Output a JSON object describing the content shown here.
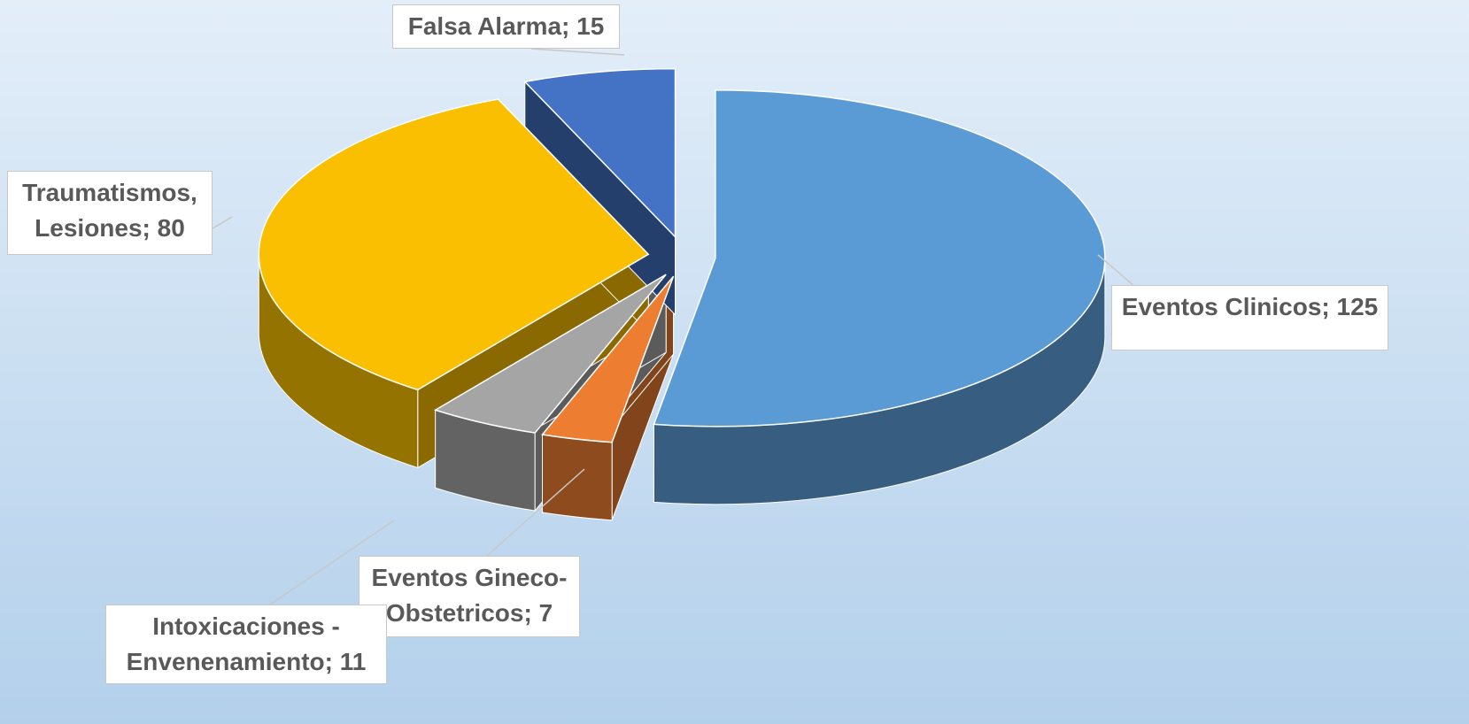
{
  "chart_data": {
    "type": "pie3d",
    "values": [
      125,
      7,
      11,
      80,
      15
    ],
    "value_labels": [
      "Eventos Clinicos; 125",
      "Eventos Gineco-Obstetricos; 7",
      "Intoxicaciones - Envenenamiento; 11",
      "Traumatismos, Lesiones; 80",
      "Falsa Alarma; 15"
    ],
    "colors": [
      "#5b9bd5",
      "#ed7d31",
      "#a5a5a5",
      "#f9bf00",
      "#4472c4"
    ]
  }
}
